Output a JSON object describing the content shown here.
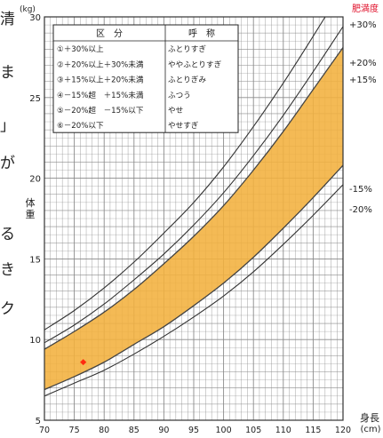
{
  "left_margin_chars": [
    "清",
    "ま",
    "」",
    "が",
    "る",
    "き",
    "ク"
  ],
  "chart_data": {
    "type": "line",
    "x_label": "身長",
    "x_unit": "(cm)",
    "y_label": "体重",
    "y_unit": "(kg)",
    "xlim": [
      70,
      120
    ],
    "ylim": [
      5,
      30
    ],
    "x_ticks": [
      "70",
      "75",
      "80",
      "85",
      "90",
      "95",
      "100",
      "105",
      "110",
      "115",
      "120"
    ],
    "y_ticks": [
      "5",
      "10",
      "15",
      "20",
      "25",
      "30"
    ],
    "x_tick_values": [
      70,
      75,
      80,
      85,
      90,
      95,
      100,
      105,
      110,
      115,
      120
    ],
    "y_tick_values": [
      5,
      10,
      15,
      20,
      25,
      30
    ],
    "grid": true,
    "right_axis_title": "肥満度",
    "legend": {
      "position": "top-left",
      "header": [
        "区　分",
        "呼　称"
      ],
      "rows": [
        [
          "①＋30%以上",
          "ふとりすぎ"
        ],
        [
          "②＋20%以上＋30%未満",
          "ややふとりすぎ"
        ],
        [
          "③＋15%以上＋20%未満",
          "ふとりぎみ"
        ],
        [
          "④－15%超　＋15%未満",
          "ふつう"
        ],
        [
          "⑤－20%超　－15%以下",
          "やせ"
        ],
        [
          "⑥－20%以下",
          "やせすぎ"
        ]
      ]
    },
    "x": [
      70,
      75,
      80,
      85,
      90,
      95,
      100,
      105,
      110,
      115,
      120
    ],
    "series": [
      {
        "name": "+30%",
        "values": [
          10.6,
          11.8,
          13.2,
          14.8,
          16.6,
          18.5,
          20.7,
          23.2,
          25.9,
          28.8,
          31.8
        ]
      },
      {
        "name": "+20%",
        "values": [
          9.8,
          10.9,
          12.2,
          13.7,
          15.3,
          17.1,
          19.1,
          21.4,
          23.9,
          26.6,
          29.4
        ]
      },
      {
        "name": "+15%",
        "values": [
          9.4,
          10.5,
          11.7,
          13.1,
          14.7,
          16.4,
          18.3,
          20.5,
          22.9,
          25.5,
          28.1
        ]
      },
      {
        "name": "-15%",
        "values": [
          6.9,
          7.7,
          8.6,
          9.7,
          10.8,
          12.1,
          13.5,
          15.1,
          16.9,
          18.8,
          20.8
        ]
      },
      {
        "name": "-20%",
        "values": [
          6.5,
          7.3,
          8.1,
          9.1,
          10.2,
          11.4,
          12.7,
          14.2,
          15.9,
          17.7,
          19.6
        ]
      }
    ],
    "band": {
      "upper": "+15%",
      "lower": "-15%",
      "color": "#f3b03e"
    },
    "marker": {
      "x": 76.5,
      "y": 8.6,
      "color": "#ff2a10"
    },
    "colors": {
      "grid": "#8a8a8a",
      "lines": "#333333",
      "band_edge": "#444444",
      "right_title": "#e0102a"
    }
  }
}
